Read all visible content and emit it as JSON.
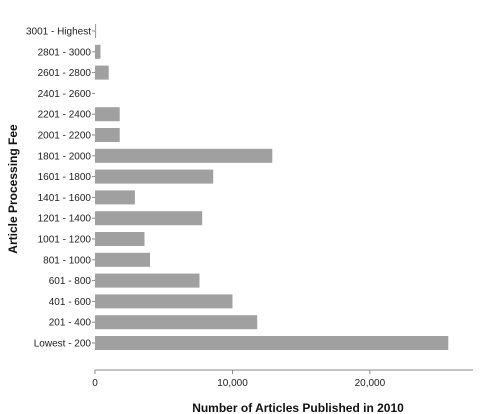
{
  "chart_data": {
    "type": "bar",
    "orientation": "horizontal",
    "categories": [
      "Lowest - 200",
      "201 - 400",
      "401 - 600",
      "601 - 800",
      "801 - 1000",
      "1001 - 1200",
      "1201 - 1400",
      "1401 - 1600",
      "1601 - 1800",
      "1801 - 2000",
      "2001 - 2200",
      "2201 - 2400",
      "2401 - 2600",
      "2601 - 2800",
      "2801 - 3000",
      "3001 - Highest"
    ],
    "values": [
      25700,
      11800,
      10000,
      7600,
      4000,
      3600,
      7800,
      2900,
      8600,
      12900,
      1800,
      1800,
      0,
      1000,
      400,
      80
    ],
    "xlabel": "Number of Articles Published in 2010",
    "ylabel": "Article Processing Fee",
    "xlim": [
      0,
      27500
    ],
    "xticks": [
      0,
      10000,
      20000
    ],
    "xtick_labels": [
      "0",
      "10,000",
      "20,000"
    ],
    "grid": false,
    "bar_color": "#a0a0a0"
  }
}
